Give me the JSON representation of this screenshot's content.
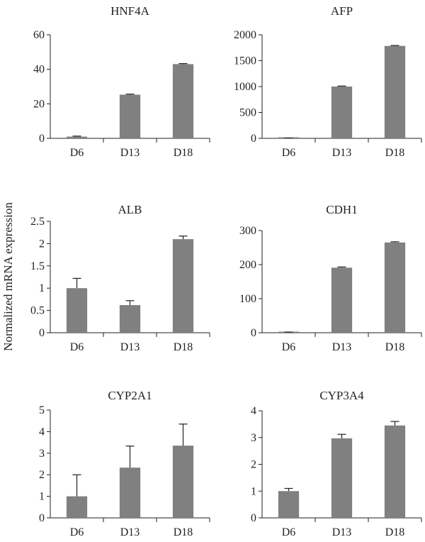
{
  "ylabel": "Normalized mRNA expression",
  "colors": {
    "bar": "#808080",
    "axis": "#231f20"
  },
  "chart_data": [
    {
      "type": "bar",
      "title": "HNF4A",
      "categories": [
        "D6",
        "D13",
        "D18"
      ],
      "values": [
        1,
        25.3,
        43
      ],
      "errors": [
        0.3,
        0.3,
        0.3
      ],
      "ylim": [
        0,
        60
      ],
      "yticks": [
        0,
        20,
        40,
        60
      ],
      "tick_labels": [
        "0",
        "20",
        "40",
        "60"
      ]
    },
    {
      "type": "bar",
      "title": "AFP",
      "categories": [
        "D6",
        "D13",
        "D18"
      ],
      "values": [
        1,
        1000,
        1785
      ],
      "errors": [
        1,
        10,
        8
      ],
      "ylim": [
        0,
        2000
      ],
      "yticks": [
        0,
        500,
        1000,
        1500,
        2000
      ],
      "tick_labels": [
        "0",
        "500",
        "1000",
        "1500",
        "2000"
      ]
    },
    {
      "type": "bar",
      "title": "ALB",
      "categories": [
        "D6",
        "D13",
        "D18"
      ],
      "values": [
        1.0,
        0.62,
        2.1
      ],
      "errors": [
        0.22,
        0.1,
        0.07
      ],
      "ylim": [
        0,
        2.5
      ],
      "yticks": [
        0,
        0.5,
        1,
        1.5,
        2,
        2.5
      ],
      "tick_labels": [
        "0",
        "0.5",
        "1",
        "1.5",
        "2",
        "2.5"
      ]
    },
    {
      "type": "bar",
      "title": "CDH1",
      "categories": [
        "D6",
        "D13",
        "D18"
      ],
      "values": [
        1,
        191,
        265
      ],
      "errors": [
        1,
        2,
        2
      ],
      "ylim": [
        0,
        300
      ],
      "yticks": [
        0,
        100,
        200,
        300
      ],
      "tick_labels": [
        "0",
        "100",
        "200",
        "300"
      ]
    },
    {
      "type": "bar",
      "title": "CYP2A1",
      "categories": [
        "D6",
        "D13",
        "D18"
      ],
      "values": [
        1.0,
        2.33,
        3.35
      ],
      "errors": [
        1.0,
        1.0,
        1.0
      ],
      "ylim": [
        0,
        5
      ],
      "yticks": [
        0,
        1,
        2,
        3,
        4,
        5
      ],
      "tick_labels": [
        "0",
        "1",
        "2",
        "3",
        "4",
        "5"
      ]
    },
    {
      "type": "bar",
      "title": "CYP3A4",
      "categories": [
        "D6",
        "D13",
        "D18"
      ],
      "values": [
        1.0,
        2.97,
        3.45
      ],
      "errors": [
        0.1,
        0.15,
        0.15
      ],
      "ylim": [
        0,
        4
      ],
      "yticks": [
        0,
        1,
        2,
        3,
        4
      ],
      "tick_labels": [
        "0",
        "1",
        "2",
        "3",
        "4"
      ]
    }
  ]
}
